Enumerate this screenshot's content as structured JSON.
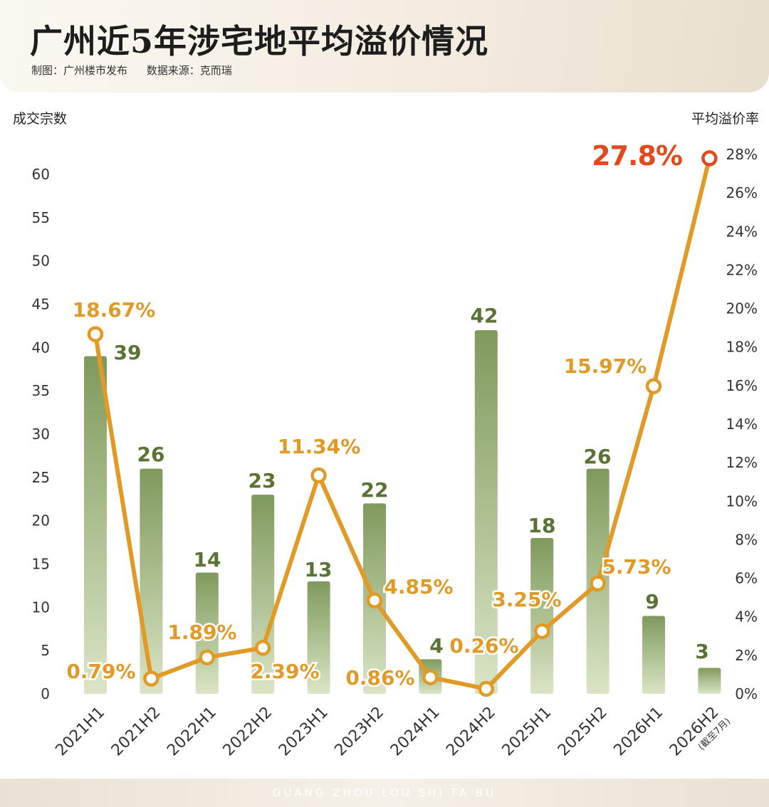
{
  "header": {
    "title": "广州近5年涉宅地平均溢价情况",
    "maker": "制图：广州楼市发布",
    "source": "数据来源：克而瑞"
  },
  "footer": {
    "text": "GUANG ZHOU LOU SHI FA BU"
  },
  "colors": {
    "bar": "#7f9a5c",
    "line": "#e19a25",
    "highlight": "#e04a1c",
    "bar_label": "#5a7233",
    "rate_label": "#e09a28"
  },
  "chart_data": {
    "type": "bar+line",
    "ylabel_left": "成交宗数",
    "ylabel_right": "平均溢价率",
    "categories": [
      "2021H1",
      "2021H2",
      "2022H1",
      "2022H2",
      "2023H1",
      "2023H2",
      "2024H1",
      "2024H2",
      "2025H1",
      "2025H2",
      "2026H1",
      "2026H2"
    ],
    "category_note": "(截至7月)",
    "left_axis": {
      "min": 0,
      "max": 60,
      "ticks": [
        "0",
        "5",
        "10",
        "15",
        "20",
        "25",
        "30",
        "35",
        "40",
        "45",
        "50",
        "55",
        "60"
      ]
    },
    "right_axis": {
      "min": 0,
      "max": 28,
      "ticks": [
        "0%",
        "2%",
        "4%",
        "6%",
        "8%",
        "10%",
        "12%",
        "14%",
        "16%",
        "18%",
        "20%",
        "22%",
        "24%",
        "26%",
        "28%"
      ]
    },
    "series": [
      {
        "name": "成交宗数",
        "kind": "bar",
        "values": [
          39,
          26,
          14,
          23,
          13,
          22,
          4,
          42,
          18,
          26,
          9,
          3
        ],
        "labels": [
          "39",
          "26",
          "14",
          "23",
          "13",
          "22",
          "4",
          "42",
          "18",
          "26",
          "9",
          "3"
        ]
      },
      {
        "name": "平均溢价率",
        "kind": "line",
        "values": [
          18.67,
          0.79,
          1.89,
          2.39,
          11.34,
          4.85,
          0.86,
          0.26,
          3.25,
          5.73,
          15.97,
          27.8
        ],
        "labels": [
          "18.67%",
          "0.79%",
          "1.89%",
          "2.39%",
          "11.34%",
          "4.85%",
          "0.86%",
          "0.26%",
          "3.25%",
          "5.73%",
          "15.97%",
          "27.8%"
        ]
      }
    ]
  }
}
